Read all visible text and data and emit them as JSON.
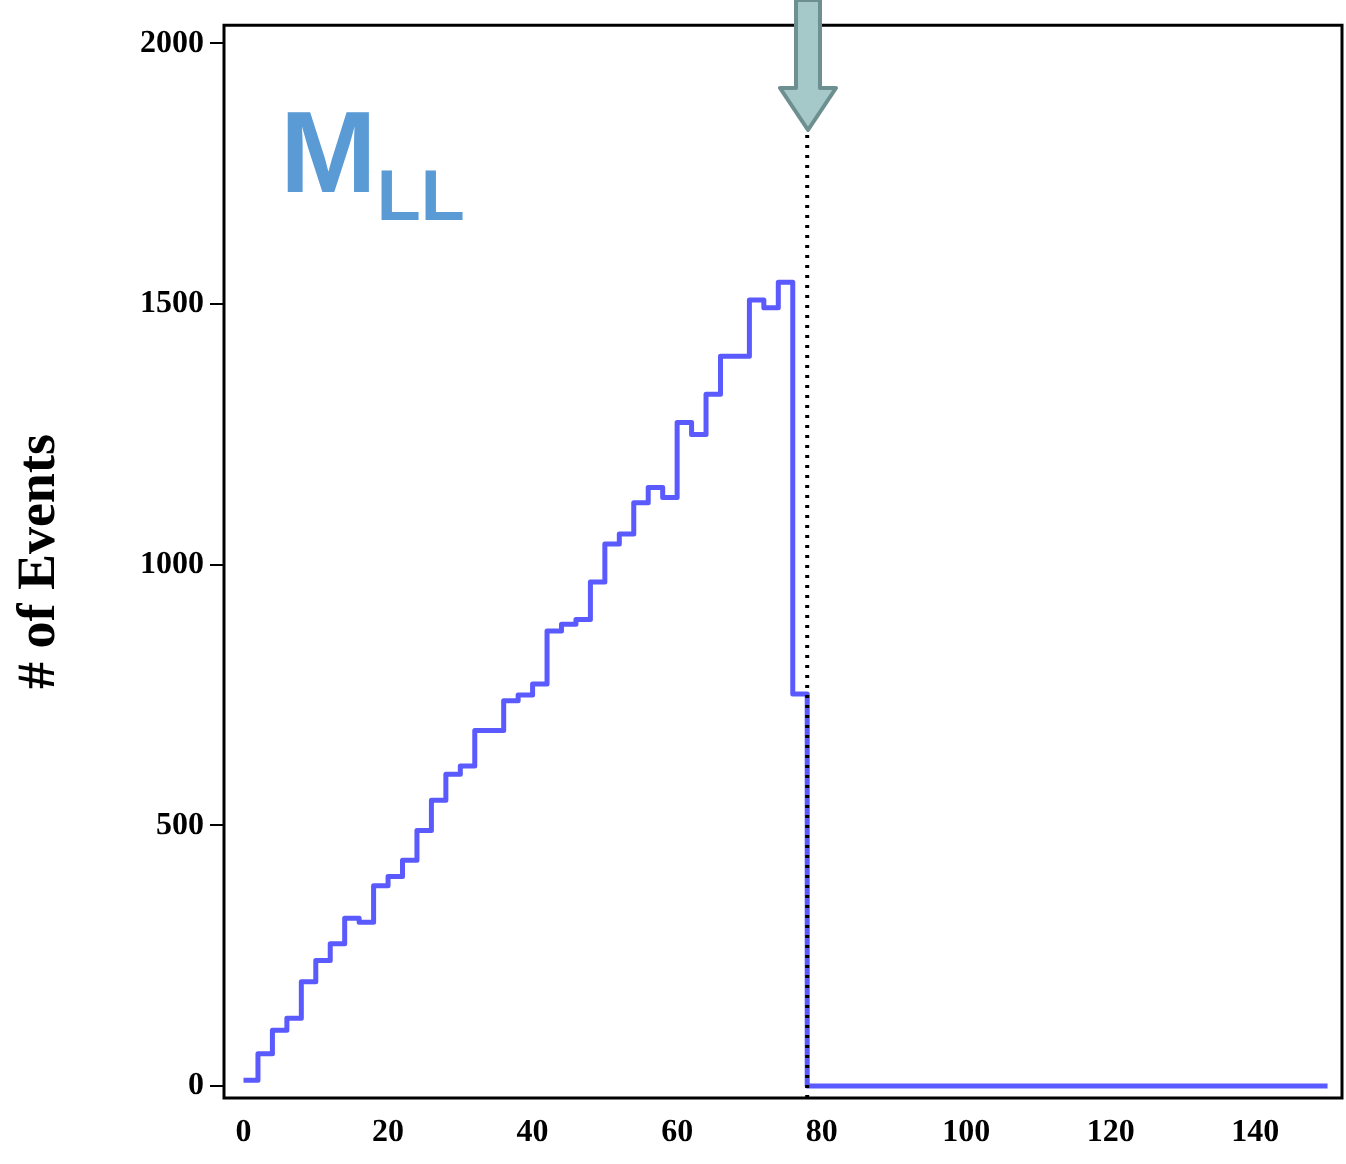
{
  "chart_data": {
    "type": "histogram",
    "ylabel": "# of Events",
    "annotations": [
      "M$_{LL}$"
    ],
    "bins": [
      0,
      2,
      4,
      6,
      8,
      10,
      12,
      14,
      16,
      18,
      20,
      22,
      24,
      26,
      28,
      30,
      32,
      34,
      36,
      38,
      40,
      42,
      44,
      46,
      48,
      50,
      52,
      54,
      56,
      58,
      60,
      62,
      64,
      66,
      68,
      70,
      72,
      74,
      76,
      78,
      80,
      82,
      84,
      86,
      88,
      90,
      92,
      94,
      96,
      98,
      100,
      102,
      104,
      106,
      108,
      110,
      112,
      114,
      116,
      118,
      120,
      122,
      124,
      126,
      128,
      130,
      132,
      134,
      136,
      138,
      140,
      142,
      144,
      146,
      148,
      150
    ],
    "values": [
      11,
      62,
      107,
      130,
      200,
      241,
      273,
      322,
      314,
      384,
      402,
      433,
      490,
      548,
      598,
      614,
      682,
      682,
      739,
      750,
      771,
      873,
      886,
      895,
      967,
      1040,
      1059,
      1119,
      1148,
      1129,
      1273,
      1250,
      1327,
      1400,
      1400,
      1508,
      1493,
      1542,
      752,
      0,
      0,
      0,
      0,
      0,
      0,
      0,
      0,
      0,
      0,
      0,
      0,
      0,
      0,
      0,
      0,
      0,
      0,
      0,
      0,
      0,
      0,
      0,
      0,
      0,
      0,
      0,
      0,
      0,
      0,
      0,
      0,
      0,
      0,
      0,
      0
    ],
    "color": "#5a5aff",
    "xlim": [
      -2.7,
      152
    ],
    "ylim": [
      -23,
      2035
    ],
    "xticks": [
      0,
      20,
      40,
      60,
      80,
      100,
      120,
      140
    ],
    "yticks": [
      0,
      500,
      {
        "value": 1000,
        "label": "1000"
      },
      {
        "value": 1500,
        "label": "1500"
      },
      {
        "value": 2000,
        "label": "2000"
      }
    ],
    "ref_lines": [
      {
        "axis": "x",
        "value": 78,
        "color": "#000000",
        "line_style": "dotted"
      }
    ],
    "grid": false,
    "legend": false
  }
}
